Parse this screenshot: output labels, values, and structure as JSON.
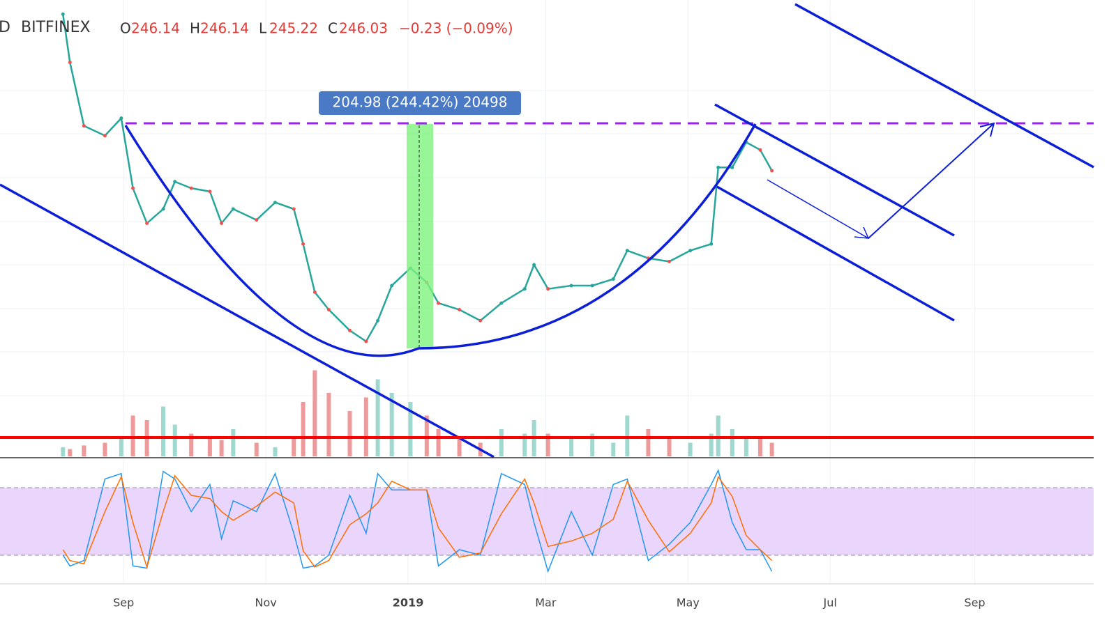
{
  "header": {
    "symbol": "D",
    "exchange": "BITFINEX",
    "open_label": "O",
    "open": "246.14",
    "high_label": "H",
    "high": "246.14",
    "low_label": "L",
    "low": "245.22",
    "close_label": "C",
    "close": "246.03",
    "change": "−0.23 (−0.09%)"
  },
  "chart_data": [
    {
      "type": "line",
      "measure_label": "204.98 (244.42%) 20498",
      "x": [
        27,
        30,
        36,
        45,
        52,
        57,
        63,
        70,
        75,
        82,
        90,
        95,
        100,
        110,
        118,
        126,
        130,
        135,
        141,
        150,
        157,
        162,
        168,
        176,
        183,
        188,
        197,
        206,
        215,
        225,
        229,
        235,
        245,
        254,
        263,
        269,
        278,
        287,
        296,
        305,
        308,
        314,
        320,
        326,
        331
      ],
      "series": [
        {
          "name": "price",
          "color": "#26a69a",
          "values": [
            389,
            345,
            287,
            278,
            294,
            230,
            198,
            211,
            236,
            230,
            227,
            198,
            211,
            201,
            217,
            211,
            179,
            135,
            119,
            100,
            90,
            109,
            141,
            157,
            144,
            125,
            119,
            109,
            125,
            138,
            160,
            138,
            141,
            141,
            147,
            173,
            166,
            163,
            173,
            179,
            249,
            249,
            272,
            265,
            246
          ]
        },
        {
          "name": "volume",
          "color": "#ef9a9a",
          "values": [
            10,
            8,
            12,
            15,
            20,
            45,
            40,
            55,
            35,
            25,
            20,
            18,
            30,
            15,
            10,
            20,
            60,
            95,
            70,
            50,
            65,
            85,
            70,
            60,
            45,
            30,
            20,
            15,
            30,
            25,
            40,
            25,
            20,
            25,
            15,
            45,
            30,
            20,
            15,
            25,
            45,
            30,
            20,
            20,
            15
          ]
        }
      ],
      "xlim": [
        0,
        469
      ],
      "ylim": [
        -15,
        402
      ],
      "vlim": [
        0,
        100
      ],
      "xticks": [
        {
          "value": 53,
          "label": "Sep"
        },
        {
          "value": 114,
          "label": "Nov"
        },
        {
          "value": 175,
          "label": "2019"
        },
        {
          "value": 234,
          "label": "Mar"
        },
        {
          "value": 295,
          "label": "May"
        },
        {
          "value": 356,
          "label": "Jul"
        },
        {
          "value": 418,
          "label": "Sep"
        }
      ]
    },
    {
      "type": "stoch",
      "x": [
        27,
        30,
        36,
        45,
        52,
        57,
        63,
        70,
        75,
        82,
        90,
        95,
        100,
        110,
        118,
        126,
        130,
        135,
        141,
        150,
        157,
        162,
        168,
        176,
        183,
        188,
        197,
        206,
        215,
        225,
        229,
        235,
        245,
        254,
        263,
        269,
        278,
        287,
        296,
        305,
        308,
        314,
        320,
        326,
        331
      ],
      "series": [
        {
          "name": "K",
          "color": "#2196f3",
          "values": [
            20,
            10,
            15,
            90,
            95,
            10,
            8,
            97,
            90,
            60,
            85,
            35,
            70,
            60,
            95,
            40,
            8,
            10,
            20,
            75,
            40,
            95,
            80,
            80,
            80,
            10,
            25,
            20,
            95,
            85,
            50,
            5,
            60,
            20,
            85,
            90,
            15,
            30,
            50,
            85,
            98,
            50,
            25,
            25,
            5
          ]
        },
        {
          "name": "D",
          "color": "#ff6d00",
          "values": [
            25,
            15,
            12,
            60,
            92,
            50,
            9,
            60,
            93,
            75,
            72,
            60,
            52,
            65,
            78,
            68,
            24,
            9,
            15,
            48,
            58,
            68,
            88,
            80,
            80,
            45,
            18,
            22,
            58,
            90,
            68,
            28,
            33,
            40,
            53,
            88,
            52,
            23,
            40,
            68,
            92,
            74,
            38,
            25,
            15
          ]
        }
      ],
      "xlim": [
        0,
        469
      ],
      "ylim": [
        0,
        100
      ]
    }
  ]
}
